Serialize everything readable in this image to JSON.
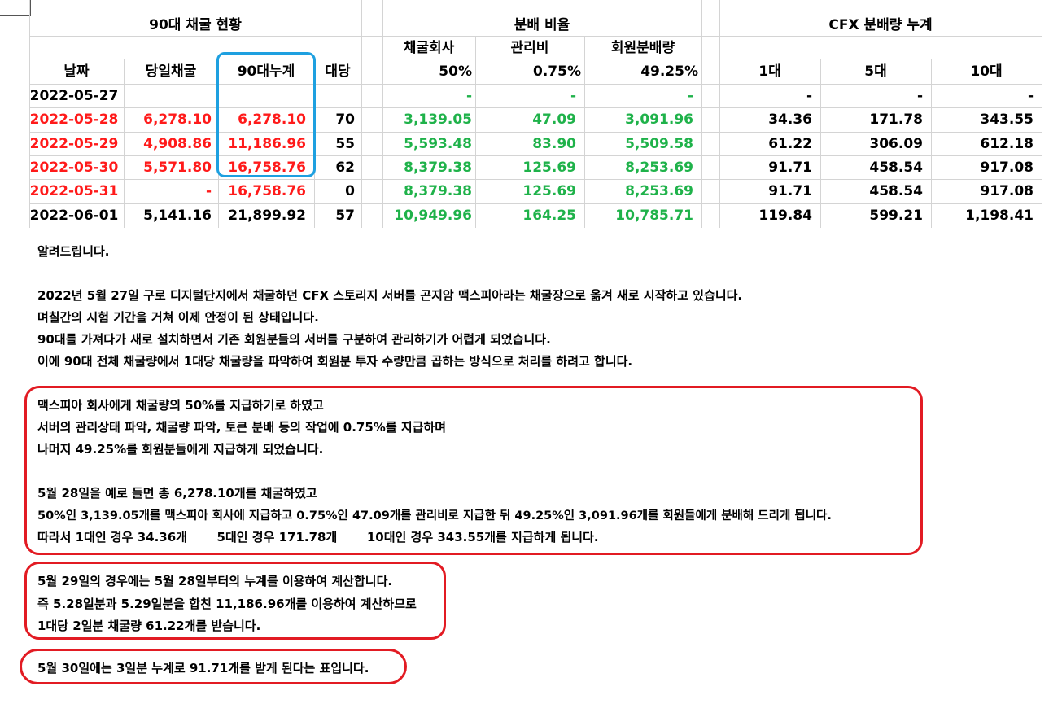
{
  "sections": {
    "mining": "90대 채굴 현황",
    "ratio": "분배 비율",
    "cumulative": "CFX 분배량 누계"
  },
  "subheaders": {
    "company": "채굴회사",
    "mgmt": "관리비",
    "member": "회원분배량"
  },
  "columns": [
    "날짜",
    "당일채굴",
    "90대누계",
    "대당",
    "50%",
    "0.75%",
    "49.25%",
    "1대",
    "5대",
    "10대"
  ],
  "rows": [
    {
      "date": "2022-05-27",
      "daily": "",
      "total": "",
      "per": "",
      "company": "-",
      "mgmt": "-",
      "member": "-",
      "u1": "-",
      "u5": "-",
      "u10": "-",
      "red": false
    },
    {
      "date": "2022-05-28",
      "daily": "6,278.10",
      "total": "6,278.10",
      "per": "70",
      "company": "3,139.05",
      "mgmt": "47.09",
      "member": "3,091.96",
      "u1": "34.36",
      "u5": "171.78",
      "u10": "343.55",
      "red": true
    },
    {
      "date": "2022-05-29",
      "daily": "4,908.86",
      "total": "11,186.96",
      "per": "55",
      "company": "5,593.48",
      "mgmt": "83.90",
      "member": "5,509.58",
      "u1": "61.22",
      "u5": "306.09",
      "u10": "612.18",
      "red": true
    },
    {
      "date": "2022-05-30",
      "daily": "5,571.80",
      "total": "16,758.76",
      "per": "62",
      "company": "8,379.38",
      "mgmt": "125.69",
      "member": "8,253.69",
      "u1": "91.71",
      "u5": "458.54",
      "u10": "917.08",
      "red": true
    },
    {
      "date": "2022-05-31",
      "daily": "-",
      "total": "16,758.76",
      "per": "0",
      "company": "8,379.38",
      "mgmt": "125.69",
      "member": "8,253.69",
      "u1": "91.71",
      "u5": "458.54",
      "u10": "917.08",
      "red": true
    },
    {
      "date": "2022-06-01",
      "daily": "5,141.16",
      "total": "21,899.92",
      "per": "57",
      "company": "10,949.96",
      "mgmt": "164.25",
      "member": "10,785.71",
      "u1": "119.84",
      "u5": "599.21",
      "u10": "1,198.41",
      "red": false
    }
  ],
  "notice": {
    "title": "알려드립니다.",
    "lines": [
      "2022년 5월 27일 구로 디지털단지에서 채굴하던 CFX 스토리지 서버를 곤지암 맥스피아라는 채굴장으로 옮겨 새로 시작하고 있습니다.",
      "며칠간의 시험 기간을 거쳐 이제 안정이 된 상태입니다.",
      "90대를 가져다가 새로 설치하면서 기존 회원분들의 서버를 구분하여 관리하기가 어렵게 되었습니다.",
      "이에 90대 전체 채굴량에서 1대당 채굴량을 파악하여 회원분 투자 수량만큼 곱하는 방식으로 처리를 하려고 합니다."
    ]
  },
  "box1": {
    "lines": [
      "맥스피아 회사에게 채굴량의 50%를 지급하기로 하였고",
      "서버의 관리상태 파악, 채굴량 파악, 토큰 분배 등의 작업에 0.75%를 지급하며",
      "나머지 49.25%를 회원분들에게 지급하게 되었습니다.",
      "",
      "5월 28일을 예로 들면 총 6,278.10개를 채굴하였고",
      "50%인 3,139.05개를 맥스피아 회사에 지급하고    0.75%인 47.09개를 관리비로 지급한 뒤 49.25%인 3,091.96개를 회원들에게 분배해 드리게 됩니다.",
      "따라서 1대인 경우 34.36개       5대인 경우 171.78개       10대인 경우 343.55개를 지급하게 됩니다."
    ]
  },
  "box2": {
    "lines": [
      "5월 29일의 경우에는 5월 28일부터의 누계를 이용하여 계산합니다.",
      "즉 5.28일분과 5.29일분을 합친 11,186.96개를 이용하여 계산하므로",
      "1대당 2일분 채굴량 61.22개를 받습니다."
    ]
  },
  "box3": {
    "lines": [
      "5월 30일에는 3일분 누계로 91.71개를 받게 된다는 표입니다."
    ]
  },
  "colors": {
    "red": "#ff1a1a",
    "green": "#1fb24a",
    "blue_box": "#1ea0e0",
    "red_box": "#e21b23"
  }
}
